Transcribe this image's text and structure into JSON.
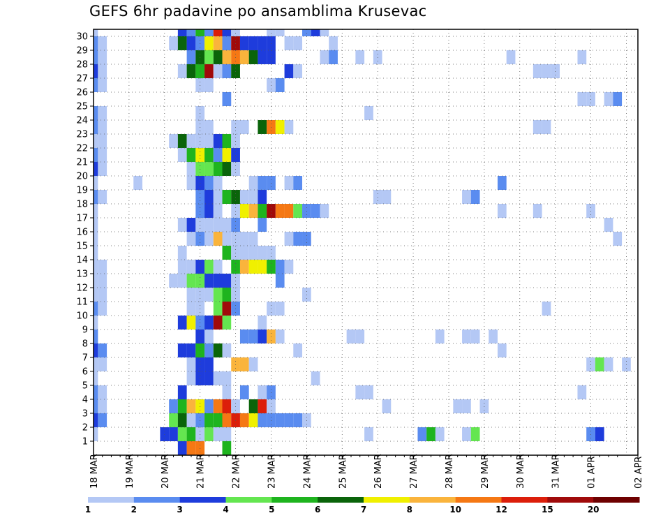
{
  "chart_data": {
    "type": "heatmap",
    "title": "GEFS 6hr padavine po ansamblima Krusevac",
    "xlabel": "",
    "ylabel": "",
    "x_tick_labels": [
      "18 MAR",
      "19 MAR",
      "20 MAR",
      "21 MAR",
      "22 MAR",
      "23 MAR",
      "24 MAR",
      "25 MAR",
      "26 MAR",
      "27 MAR",
      "28 MAR",
      "29 MAR",
      "30 MAR",
      "31 MAR",
      "01 APR",
      "02 APR"
    ],
    "y_tick_labels": [
      "1",
      "2",
      "3",
      "4",
      "5",
      "6",
      "7",
      "8",
      "9",
      "10",
      "11",
      "12",
      "13",
      "14",
      "15",
      "16",
      "17",
      "18",
      "19",
      "20",
      "21",
      "22",
      "23",
      "24",
      "25",
      "26",
      "27",
      "28",
      "29",
      "30"
    ],
    "ylim": [
      1,
      30
    ],
    "time_steps_per_day": 4,
    "grid": true,
    "colorbar": {
      "placement": "bottom",
      "labels": [
        "1",
        "2",
        "3",
        "4",
        "5",
        "6",
        "7",
        "8",
        "10",
        "12",
        "15",
        "20"
      ],
      "colors": [
        "#b4c8f5",
        "#5a8cf0",
        "#1e3cdc",
        "#64e650",
        "#1eb41e",
        "#0a640a",
        "#f0f000",
        "#fab43c",
        "#f57814",
        "#dc1e0a",
        "#a00a0a",
        "#6e0000"
      ]
    },
    "levels_note": "cells give the colorbar class index (1-12) per ensemble member (row) and 6-hour step (column)",
    "cells": {
      "1": [
        [
          0,
          1
        ],
        [
          8,
          3
        ],
        [
          9,
          3
        ],
        [
          10,
          4
        ],
        [
          11,
          5
        ],
        [
          12,
          1
        ],
        [
          13,
          4
        ],
        [
          14,
          1
        ],
        [
          15,
          1
        ],
        [
          31,
          1
        ],
        [
          37,
          2
        ],
        [
          38,
          5
        ],
        [
          39,
          1
        ],
        [
          42,
          1
        ],
        [
          43,
          4
        ],
        [
          56,
          2
        ],
        [
          57,
          3
        ]
      ],
      "2": [
        [
          0,
          3
        ],
        [
          1,
          2
        ],
        [
          9,
          4
        ],
        [
          10,
          6
        ],
        [
          11,
          1
        ],
        [
          12,
          2
        ],
        [
          13,
          5
        ],
        [
          14,
          5
        ],
        [
          15,
          9
        ],
        [
          16,
          10
        ],
        [
          17,
          9
        ],
        [
          18,
          7
        ],
        [
          19,
          2
        ],
        [
          20,
          2
        ],
        [
          21,
          2
        ],
        [
          22,
          2
        ],
        [
          23,
          2
        ],
        [
          24,
          1
        ]
      ],
      "3": [
        [
          0,
          2
        ],
        [
          1,
          1
        ],
        [
          9,
          2
        ],
        [
          10,
          5
        ],
        [
          11,
          8
        ],
        [
          12,
          7
        ],
        [
          13,
          2
        ],
        [
          14,
          9
        ],
        [
          15,
          10
        ],
        [
          16,
          1
        ],
        [
          18,
          6
        ],
        [
          19,
          10
        ],
        [
          20,
          1
        ],
        [
          33,
          1
        ],
        [
          41,
          1
        ],
        [
          42,
          1
        ],
        [
          44,
          1
        ]
      ],
      "4": [
        [
          0,
          2
        ],
        [
          1,
          1
        ],
        [
          10,
          3
        ],
        [
          15,
          1
        ],
        [
          17,
          2
        ],
        [
          19,
          1
        ],
        [
          20,
          2
        ],
        [
          30,
          1
        ],
        [
          31,
          1
        ],
        [
          55,
          1
        ]
      ],
      "5": [
        [
          0,
          1
        ],
        [
          11,
          1
        ],
        [
          12,
          3
        ],
        [
          13,
          3
        ],
        [
          14,
          1
        ],
        [
          15,
          1
        ],
        [
          25,
          1
        ]
      ],
      "6": [
        [
          0,
          1
        ],
        [
          1,
          1
        ],
        [
          11,
          1
        ],
        [
          12,
          3
        ],
        [
          13,
          3
        ],
        [
          16,
          8
        ],
        [
          17,
          8
        ],
        [
          18,
          1
        ],
        [
          56,
          1
        ],
        [
          57,
          4
        ],
        [
          58,
          1
        ],
        [
          60,
          1
        ]
      ],
      "7": [
        [
          0,
          3
        ],
        [
          1,
          2
        ],
        [
          10,
          3
        ],
        [
          11,
          3
        ],
        [
          12,
          5
        ],
        [
          13,
          2
        ],
        [
          14,
          6
        ],
        [
          15,
          1
        ],
        [
          23,
          1
        ],
        [
          46,
          1
        ]
      ],
      "8": [
        [
          0,
          2
        ],
        [
          12,
          3
        ],
        [
          13,
          1
        ],
        [
          17,
          2
        ],
        [
          18,
          2
        ],
        [
          19,
          3
        ],
        [
          20,
          8
        ],
        [
          21,
          1
        ],
        [
          29,
          1
        ],
        [
          30,
          1
        ],
        [
          39,
          1
        ],
        [
          42,
          1
        ],
        [
          43,
          1
        ],
        [
          45,
          1
        ]
      ],
      "9": [
        [
          0,
          1
        ],
        [
          10,
          3
        ],
        [
          11,
          7
        ],
        [
          12,
          2
        ],
        [
          13,
          3
        ],
        [
          14,
          11
        ],
        [
          15,
          4
        ],
        [
          19,
          1
        ]
      ],
      "10": [
        [
          0,
          2
        ],
        [
          1,
          1
        ],
        [
          11,
          1
        ],
        [
          12,
          1
        ],
        [
          14,
          4
        ],
        [
          15,
          11
        ],
        [
          16,
          2
        ],
        [
          20,
          1
        ],
        [
          21,
          1
        ],
        [
          51,
          1
        ]
      ],
      "11": [
        [
          0,
          1
        ],
        [
          1,
          1
        ],
        [
          11,
          1
        ],
        [
          12,
          1
        ],
        [
          13,
          1
        ],
        [
          14,
          4
        ],
        [
          15,
          5
        ],
        [
          16,
          1
        ],
        [
          24,
          1
        ]
      ],
      "12": [
        [
          0,
          1
        ],
        [
          1,
          1
        ],
        [
          9,
          1
        ],
        [
          10,
          1
        ],
        [
          11,
          4
        ],
        [
          12,
          4
        ],
        [
          13,
          3
        ],
        [
          14,
          3
        ],
        [
          15,
          3
        ],
        [
          16,
          1
        ],
        [
          21,
          2
        ]
      ],
      "13": [
        [
          0,
          1
        ],
        [
          1,
          1
        ],
        [
          10,
          1
        ],
        [
          11,
          1
        ],
        [
          12,
          3
        ],
        [
          13,
          4
        ],
        [
          14,
          1
        ],
        [
          16,
          5
        ],
        [
          17,
          8
        ],
        [
          18,
          7
        ],
        [
          19,
          7
        ],
        [
          20,
          5
        ],
        [
          21,
          2
        ],
        [
          22,
          1
        ]
      ],
      "14": [
        [
          0,
          1
        ],
        [
          10,
          1
        ],
        [
          15,
          5
        ],
        [
          16,
          1
        ],
        [
          17,
          1
        ],
        [
          18,
          1
        ],
        [
          19,
          1
        ],
        [
          20,
          1
        ]
      ],
      "15": [
        [
          0,
          1
        ],
        [
          11,
          1
        ],
        [
          12,
          2
        ],
        [
          13,
          1
        ],
        [
          14,
          8
        ],
        [
          15,
          1
        ],
        [
          16,
          1
        ],
        [
          17,
          1
        ],
        [
          18,
          1
        ],
        [
          22,
          1
        ],
        [
          23,
          2
        ],
        [
          24,
          2
        ],
        [
          59,
          1
        ]
      ],
      "16": [
        [
          0,
          1
        ],
        [
          10,
          1
        ],
        [
          11,
          3
        ],
        [
          12,
          1
        ],
        [
          13,
          1
        ],
        [
          14,
          1
        ],
        [
          15,
          1
        ],
        [
          16,
          2
        ],
        [
          19,
          2
        ],
        [
          58,
          1
        ]
      ],
      "17": [
        [
          0,
          1
        ],
        [
          12,
          2
        ],
        [
          13,
          3
        ],
        [
          14,
          1
        ],
        [
          16,
          1
        ],
        [
          17,
          7
        ],
        [
          18,
          8
        ],
        [
          19,
          5
        ],
        [
          20,
          11
        ],
        [
          21,
          9
        ],
        [
          22,
          9
        ],
        [
          23,
          4
        ],
        [
          24,
          2
        ],
        [
          25,
          2
        ],
        [
          26,
          1
        ],
        [
          46,
          1
        ],
        [
          50,
          1
        ],
        [
          56,
          1
        ]
      ],
      "18": [
        [
          0,
          2
        ],
        [
          1,
          1
        ],
        [
          12,
          2
        ],
        [
          13,
          3
        ],
        [
          14,
          1
        ],
        [
          15,
          5
        ],
        [
          16,
          6
        ],
        [
          17,
          1
        ],
        [
          18,
          1
        ],
        [
          19,
          3
        ],
        [
          32,
          1
        ],
        [
          33,
          1
        ],
        [
          42,
          1
        ],
        [
          43,
          2
        ]
      ],
      "19": [
        [
          0,
          1
        ],
        [
          5,
          1
        ],
        [
          11,
          1
        ],
        [
          12,
          3
        ],
        [
          13,
          2
        ],
        [
          14,
          1
        ],
        [
          18,
          1
        ],
        [
          19,
          2
        ],
        [
          20,
          2
        ],
        [
          22,
          1
        ],
        [
          23,
          2
        ],
        [
          46,
          2
        ]
      ],
      "20": [
        [
          0,
          3
        ],
        [
          1,
          1
        ],
        [
          11,
          1
        ],
        [
          12,
          4
        ],
        [
          13,
          4
        ],
        [
          14,
          5
        ],
        [
          15,
          6
        ],
        [
          16,
          1
        ]
      ],
      "21": [
        [
          0,
          2
        ],
        [
          1,
          1
        ],
        [
          10,
          1
        ],
        [
          11,
          5
        ],
        [
          12,
          7
        ],
        [
          13,
          5
        ],
        [
          14,
          2
        ],
        [
          15,
          7
        ],
        [
          16,
          3
        ]
      ],
      "22": [
        [
          0,
          1
        ],
        [
          1,
          1
        ],
        [
          9,
          1
        ],
        [
          10,
          6
        ],
        [
          11,
          1
        ],
        [
          12,
          1
        ],
        [
          13,
          1
        ],
        [
          14,
          3
        ],
        [
          15,
          5
        ],
        [
          16,
          1
        ]
      ],
      "23": [
        [
          0,
          2
        ],
        [
          1,
          1
        ],
        [
          12,
          1
        ],
        [
          13,
          1
        ],
        [
          16,
          1
        ],
        [
          17,
          1
        ],
        [
          19,
          6
        ],
        [
          20,
          9
        ],
        [
          21,
          7
        ],
        [
          22,
          1
        ],
        [
          50,
          1
        ],
        [
          51,
          1
        ]
      ],
      "24": [
        [
          0,
          2
        ],
        [
          1,
          1
        ],
        [
          12,
          1
        ],
        [
          31,
          1
        ]
      ],
      "25": [
        [
          15,
          2
        ],
        [
          55,
          1
        ],
        [
          56,
          1
        ],
        [
          58,
          1
        ],
        [
          59,
          2
        ]
      ],
      "26": [
        [
          0,
          2
        ],
        [
          1,
          1
        ],
        [
          12,
          1
        ],
        [
          13,
          1
        ],
        [
          20,
          1
        ],
        [
          21,
          2
        ]
      ],
      "27": [
        [
          0,
          3
        ],
        [
          1,
          1
        ],
        [
          10,
          1
        ],
        [
          11,
          6
        ],
        [
          12,
          5
        ],
        [
          13,
          11
        ],
        [
          14,
          1
        ],
        [
          15,
          2
        ],
        [
          16,
          6
        ],
        [
          22,
          3
        ],
        [
          23,
          1
        ],
        [
          50,
          1
        ],
        [
          51,
          1
        ],
        [
          52,
          1
        ]
      ],
      "28": [
        [
          0,
          2
        ],
        [
          1,
          1
        ],
        [
          11,
          2
        ],
        [
          12,
          6
        ],
        [
          13,
          4
        ],
        [
          14,
          6
        ],
        [
          15,
          8
        ],
        [
          16,
          9
        ],
        [
          17,
          8
        ],
        [
          18,
          6
        ],
        [
          19,
          3
        ],
        [
          20,
          3
        ],
        [
          26,
          1
        ],
        [
          27,
          2
        ],
        [
          30,
          1
        ],
        [
          32,
          1
        ],
        [
          47,
          1
        ],
        [
          55,
          1
        ]
      ],
      "29": [
        [
          0,
          2
        ],
        [
          1,
          1
        ],
        [
          9,
          1
        ],
        [
          10,
          6
        ],
        [
          11,
          3
        ],
        [
          12,
          2
        ],
        [
          13,
          7
        ],
        [
          14,
          8
        ],
        [
          15,
          2
        ],
        [
          16,
          11
        ],
        [
          17,
          3
        ],
        [
          18,
          3
        ],
        [
          19,
          3
        ],
        [
          20,
          3
        ],
        [
          22,
          1
        ],
        [
          23,
          1
        ],
        [
          27,
          1
        ]
      ],
      "30": [
        [
          0,
          1
        ],
        [
          10,
          3
        ],
        [
          11,
          2
        ],
        [
          12,
          5
        ],
        [
          13,
          2
        ],
        [
          14,
          10
        ],
        [
          15,
          3
        ],
        [
          16,
          1
        ],
        [
          20,
          1
        ],
        [
          21,
          1
        ],
        [
          24,
          2
        ],
        [
          25,
          3
        ],
        [
          26,
          1
        ]
      ],
      "0": [
        [
          10,
          3
        ],
        [
          11,
          9
        ],
        [
          12,
          9
        ],
        [
          15,
          5
        ]
      ]
    }
  }
}
